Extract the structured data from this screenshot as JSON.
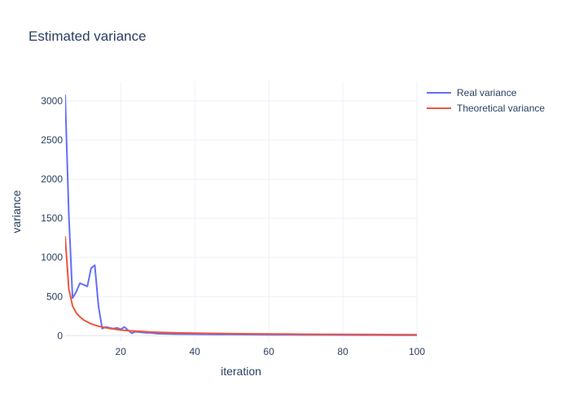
{
  "chart_data": {
    "type": "line",
    "title": "Estimated variance",
    "xlabel": "iteration",
    "ylabel": "variance",
    "xlim": [
      5,
      100
    ],
    "ylim": [
      -80,
      3250
    ],
    "x_ticks": [
      20,
      40,
      60,
      80,
      100
    ],
    "y_ticks": [
      0,
      500,
      1000,
      1500,
      2000,
      2500,
      3000
    ],
    "grid": true,
    "legend_position": "top-right",
    "series": [
      {
        "name": "Real variance",
        "color": "#636efa",
        "x": [
          5,
          6,
          7,
          8,
          9,
          10,
          11,
          12,
          13,
          14,
          15,
          16,
          17,
          18,
          19,
          20,
          21,
          22,
          23,
          24,
          25,
          26,
          27,
          28,
          29,
          30,
          35,
          40,
          45,
          50,
          55,
          60,
          65,
          70,
          75,
          80,
          85,
          90,
          95,
          98,
          100
        ],
        "y": [
          3080,
          1550,
          480,
          560,
          670,
          650,
          630,
          860,
          900,
          380,
          90,
          110,
          100,
          90,
          100,
          80,
          110,
          70,
          30,
          50,
          45,
          40,
          35,
          35,
          30,
          25,
          20,
          18,
          15,
          15,
          14,
          12,
          11,
          10,
          9,
          8,
          7,
          7,
          6,
          5,
          6
        ]
      },
      {
        "name": "Theoretical variance",
        "color": "#ef553b",
        "x": [
          5,
          6,
          7,
          8,
          9,
          10,
          11,
          12,
          13,
          14,
          15,
          16,
          17,
          18,
          19,
          20,
          22,
          24,
          26,
          28,
          30,
          35,
          40,
          45,
          50,
          55,
          60,
          65,
          70,
          75,
          80,
          85,
          90,
          95,
          100
        ],
        "y": [
          1270,
          600,
          380,
          290,
          240,
          200,
          175,
          150,
          135,
          120,
          110,
          100,
          92,
          85,
          78,
          72,
          63,
          57,
          52,
          46,
          43,
          36,
          32,
          28,
          25,
          23,
          21,
          20,
          18,
          17,
          16,
          15,
          14,
          13,
          12
        ]
      }
    ]
  }
}
